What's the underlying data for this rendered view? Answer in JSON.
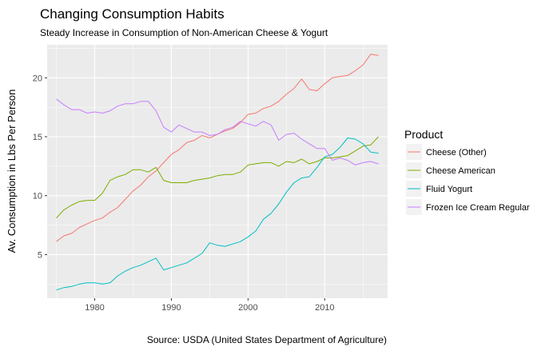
{
  "chart_data": {
    "type": "line",
    "title": "Changing Consumption Habits",
    "subtitle": "Steady Increase in Consumption of Non-American Cheese & Yogurt",
    "xlabel": "",
    "ylabel": "Av. Consumption in Lbs Per Person",
    "caption": "Source: USDA (United States Department of Agriculture)",
    "xlim": [
      1973.8,
      2018.2
    ],
    "ylim": [
      1.3,
      22.8
    ],
    "x_ticks": [
      1980,
      1990,
      2000,
      2010
    ],
    "x_tick_labels": [
      "1980",
      "1990",
      "2000",
      "2010"
    ],
    "y_ticks": [
      5,
      10,
      15,
      20
    ],
    "y_tick_labels": [
      "5",
      "10",
      "15",
      "20"
    ],
    "grid": true,
    "legend": {
      "title": "Product",
      "position": "right"
    },
    "x": [
      1975,
      1976,
      1977,
      1978,
      1979,
      1980,
      1981,
      1982,
      1983,
      1984,
      1985,
      1986,
      1987,
      1988,
      1989,
      1990,
      1991,
      1992,
      1993,
      1994,
      1995,
      1996,
      1997,
      1998,
      1999,
      2000,
      2001,
      2002,
      2003,
      2004,
      2005,
      2006,
      2007,
      2008,
      2009,
      2010,
      2011,
      2012,
      2013,
      2014,
      2015,
      2016,
      2017
    ],
    "series": [
      {
        "name": "Cheese (Other)",
        "color": "#F8766D",
        "values": [
          6.1,
          6.6,
          6.8,
          7.3,
          7.6,
          7.9,
          8.1,
          8.6,
          9.0,
          9.7,
          10.4,
          10.9,
          11.6,
          12.1,
          12.8,
          13.5,
          13.9,
          14.5,
          14.7,
          15.1,
          14.9,
          15.2,
          15.5,
          15.7,
          16.2,
          16.9,
          17.0,
          17.4,
          17.6,
          18.0,
          18.6,
          19.1,
          19.9,
          19.0,
          18.9,
          19.5,
          20.0,
          20.1,
          20.2,
          20.6,
          21.1,
          22.0,
          21.9
        ]
      },
      {
        "name": "Cheese American",
        "color": "#7CAE00",
        "values": [
          8.1,
          8.8,
          9.2,
          9.5,
          9.6,
          9.6,
          10.2,
          11.3,
          11.6,
          11.8,
          12.2,
          12.2,
          12.0,
          12.4,
          11.3,
          11.1,
          11.1,
          11.1,
          11.3,
          11.4,
          11.5,
          11.7,
          11.8,
          11.8,
          12.0,
          12.6,
          12.7,
          12.8,
          12.8,
          12.5,
          12.9,
          12.8,
          13.1,
          12.7,
          12.9,
          13.2,
          13.2,
          13.3,
          13.4,
          13.8,
          14.2,
          14.3,
          15.0
        ]
      },
      {
        "name": "Fluid Yogurt",
        "color": "#00BFC4",
        "values": [
          2.0,
          2.2,
          2.3,
          2.5,
          2.6,
          2.6,
          2.5,
          2.6,
          3.2,
          3.6,
          3.9,
          4.1,
          4.4,
          4.7,
          3.7,
          3.9,
          4.1,
          4.3,
          4.7,
          5.1,
          6.0,
          5.8,
          5.7,
          5.9,
          6.1,
          6.5,
          7.0,
          8.0,
          8.5,
          9.3,
          10.3,
          11.1,
          11.5,
          11.6,
          12.4,
          13.3,
          13.5,
          14.1,
          14.9,
          14.8,
          14.4,
          13.7,
          13.6
        ]
      },
      {
        "name": "Frozen Ice Cream Regular",
        "color": "#C77CFF",
        "values": [
          18.2,
          17.7,
          17.3,
          17.3,
          17.0,
          17.1,
          17.0,
          17.2,
          17.6,
          17.8,
          17.8,
          18.0,
          18.0,
          17.2,
          15.8,
          15.4,
          16.0,
          15.7,
          15.4,
          15.4,
          15.1,
          15.2,
          15.6,
          15.8,
          16.3,
          16.1,
          15.9,
          16.3,
          16.0,
          14.7,
          15.2,
          15.3,
          14.8,
          14.4,
          14.0,
          14.0,
          13.0,
          13.2,
          13.0,
          12.6,
          12.8,
          12.9,
          12.7
        ]
      }
    ]
  }
}
